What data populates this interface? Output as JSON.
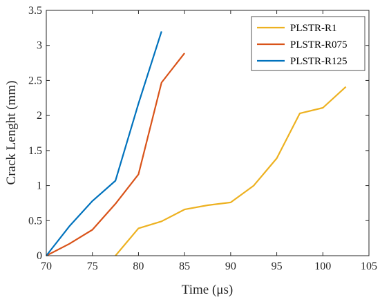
{
  "chart_data": {
    "type": "line",
    "xlabel": "Time (μs)",
    "ylabel": "Crack Lenght (mm)",
    "xlim": [
      70,
      105
    ],
    "ylim": [
      0,
      3.5
    ],
    "xticks": [
      70,
      75,
      80,
      85,
      90,
      95,
      100,
      105
    ],
    "yticks": [
      0,
      0.5,
      1,
      1.5,
      2,
      2.5,
      3,
      3.5
    ],
    "xtick_labels": [
      "70",
      "75",
      "80",
      "85",
      "90",
      "95",
      "100",
      "105"
    ],
    "ytick_labels": [
      "0",
      "0.5",
      "1",
      "1.5",
      "2",
      "2.5",
      "3",
      "3.5"
    ],
    "grid": false,
    "legend_position": "top-right",
    "series": [
      {
        "name": "PLSTR-R1",
        "color": "#EDB120",
        "x": [
          77.5,
          80,
          82.5,
          85,
          87.5,
          90,
          92.5,
          95,
          97.5,
          100,
          102.5
        ],
        "y": [
          0,
          0.39,
          0.49,
          0.66,
          0.72,
          0.76,
          1.0,
          1.39,
          2.03,
          2.11,
          2.41
        ]
      },
      {
        "name": "PLSTR-R075",
        "color": "#D95319",
        "x": [
          70,
          72.5,
          75,
          77.5,
          80,
          82.5,
          85
        ],
        "y": [
          0,
          0.17,
          0.37,
          0.74,
          1.16,
          2.47,
          2.89
        ]
      },
      {
        "name": "PLSTR-R125",
        "color": "#0072BD",
        "x": [
          70,
          72.5,
          75,
          77.5,
          80,
          82.5
        ],
        "y": [
          0,
          0.42,
          0.78,
          1.07,
          2.17,
          3.2
        ]
      }
    ]
  }
}
